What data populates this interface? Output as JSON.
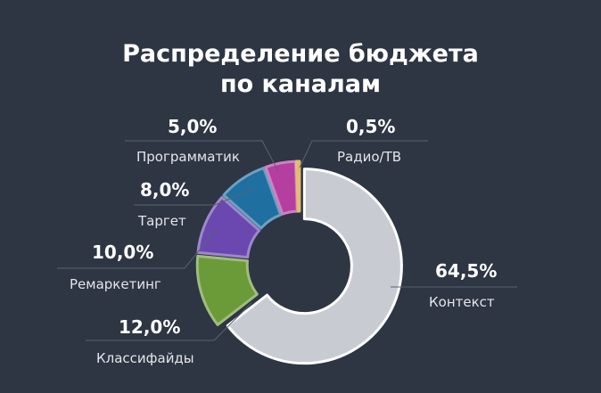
{
  "chart_data": {
    "type": "pie",
    "title_lines": [
      "Распределение бюджета",
      "по каналам"
    ],
    "legend": "none",
    "slices": [
      {
        "label": "Контекст",
        "value": 64.5,
        "value_label": "64,5%",
        "color": "#c8cbd1"
      },
      {
        "label": "Классифайды",
        "value": 12.0,
        "value_label": "12,0%",
        "color": "#6b9a38"
      },
      {
        "label": "Ремаркетинг",
        "value": 10.0,
        "value_label": "10,0%",
        "color": "#6a48b0"
      },
      {
        "label": "Таргет",
        "value": 8.0,
        "value_label": "8,0%",
        "color": "#1f6fa0"
      },
      {
        "label": "Программатик",
        "value": 5.0,
        "value_label": "5,0%",
        "color": "#b43fa0"
      },
      {
        "label": "Радио/ТВ",
        "value": 0.5,
        "value_label": "0,5%",
        "color": "#d49a2a"
      }
    ]
  }
}
